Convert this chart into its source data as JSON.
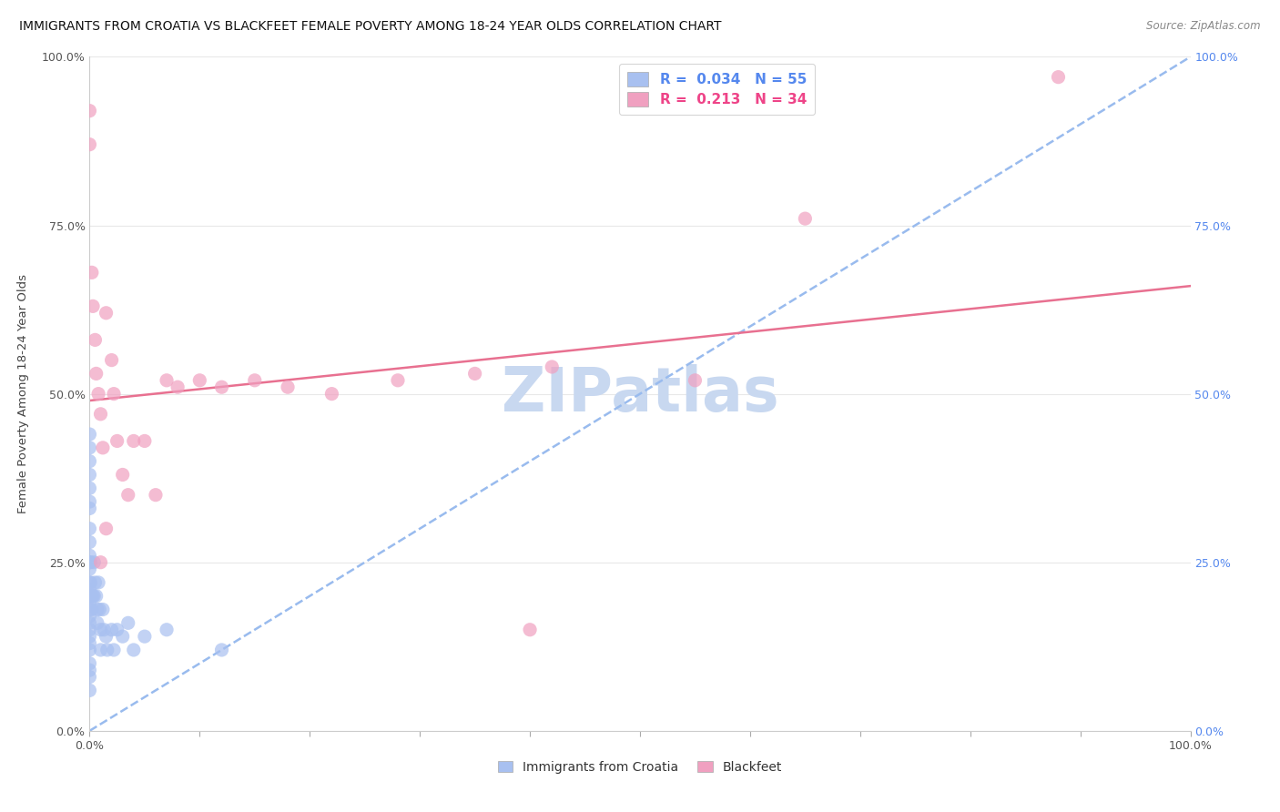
{
  "title": "IMMIGRANTS FROM CROATIA VS BLACKFEET FEMALE POVERTY AMONG 18-24 YEAR OLDS CORRELATION CHART",
  "source": "Source: ZipAtlas.com",
  "ylabel": "Female Poverty Among 18-24 Year Olds",
  "xlim": [
    0.0,
    1.0
  ],
  "ylim": [
    0.0,
    1.0
  ],
  "ytick_values": [
    0.0,
    0.25,
    0.5,
    0.75,
    1.0
  ],
  "xtick_values": [
    0.0,
    0.1,
    0.2,
    0.3,
    0.4,
    0.5,
    0.6,
    0.7,
    0.8,
    0.9,
    1.0
  ],
  "bg_color": "#ffffff",
  "grid_color": "#e8e8e8",
  "watermark": "ZIPatlas",
  "watermark_color": "#c8d8f0",
  "series": [
    {
      "name": "Immigrants from Croatia",
      "dot_color": "#a8c0f0",
      "dot_edge_color": "#7090d0",
      "R": 0.034,
      "N": 55,
      "trend_x": [
        0.0,
        1.0
      ],
      "trend_y": [
        0.0,
        1.0
      ],
      "trend_color": "#99bbee",
      "trend_style": "--",
      "x": [
        0.0,
        0.0,
        0.0,
        0.0,
        0.0,
        0.0,
        0.0,
        0.0,
        0.0,
        0.0,
        0.0,
        0.0,
        0.0,
        0.0,
        0.0,
        0.0,
        0.0,
        0.0,
        0.0,
        0.0,
        0.0,
        0.0,
        0.0,
        0.0,
        0.0,
        0.0,
        0.001,
        0.001,
        0.002,
        0.002,
        0.003,
        0.004,
        0.004,
        0.005,
        0.006,
        0.007,
        0.007,
        0.008,
        0.009,
        0.01,
        0.01,
        0.012,
        0.013,
        0.015,
        0.016,
        0.02,
        0.022,
        0.025,
        0.03,
        0.035,
        0.04,
        0.05,
        0.07,
        0.12,
        0.0
      ],
      "y": [
        0.44,
        0.42,
        0.4,
        0.38,
        0.36,
        0.34,
        0.33,
        0.3,
        0.28,
        0.26,
        0.25,
        0.24,
        0.22,
        0.21,
        0.2,
        0.19,
        0.18,
        0.17,
        0.16,
        0.15,
        0.14,
        0.13,
        0.12,
        0.1,
        0.09,
        0.08,
        0.25,
        0.22,
        0.2,
        0.18,
        0.2,
        0.25,
        0.2,
        0.22,
        0.2,
        0.18,
        0.16,
        0.22,
        0.18,
        0.15,
        0.12,
        0.18,
        0.15,
        0.14,
        0.12,
        0.15,
        0.12,
        0.15,
        0.14,
        0.16,
        0.12,
        0.14,
        0.15,
        0.12,
        0.06
      ]
    },
    {
      "name": "Blackfeet",
      "dot_color": "#f0a0c0",
      "dot_edge_color": "#e06080",
      "R": 0.213,
      "N": 34,
      "trend_x": [
        0.0,
        1.0
      ],
      "trend_y": [
        0.49,
        0.66
      ],
      "trend_color": "#e87090",
      "trend_style": "-",
      "x": [
        0.0,
        0.0,
        0.002,
        0.003,
        0.005,
        0.006,
        0.008,
        0.01,
        0.012,
        0.015,
        0.02,
        0.022,
        0.025,
        0.03,
        0.04,
        0.05,
        0.06,
        0.07,
        0.08,
        0.1,
        0.12,
        0.15,
        0.18,
        0.22,
        0.28,
        0.35,
        0.42,
        0.55,
        0.65,
        0.88,
        0.01,
        0.015,
        0.035,
        0.4
      ],
      "y": [
        0.92,
        0.87,
        0.68,
        0.63,
        0.58,
        0.53,
        0.5,
        0.47,
        0.42,
        0.62,
        0.55,
        0.5,
        0.43,
        0.38,
        0.43,
        0.43,
        0.35,
        0.52,
        0.51,
        0.52,
        0.51,
        0.52,
        0.51,
        0.5,
        0.52,
        0.53,
        0.54,
        0.52,
        0.76,
        0.97,
        0.25,
        0.3,
        0.35,
        0.15
      ]
    }
  ],
  "legend_entries": [
    {
      "label": "R =  0.034   N = 55",
      "color": "#5588ee",
      "patch_color": "#a8c0f0"
    },
    {
      "label": "R =  0.213   N = 34",
      "color": "#ee4488",
      "patch_color": "#f0a0c0"
    }
  ],
  "bottom_legend": [
    {
      "label": "Immigrants from Croatia",
      "color": "#a8c0f0"
    },
    {
      "label": "Blackfeet",
      "color": "#f0a0c0"
    }
  ]
}
